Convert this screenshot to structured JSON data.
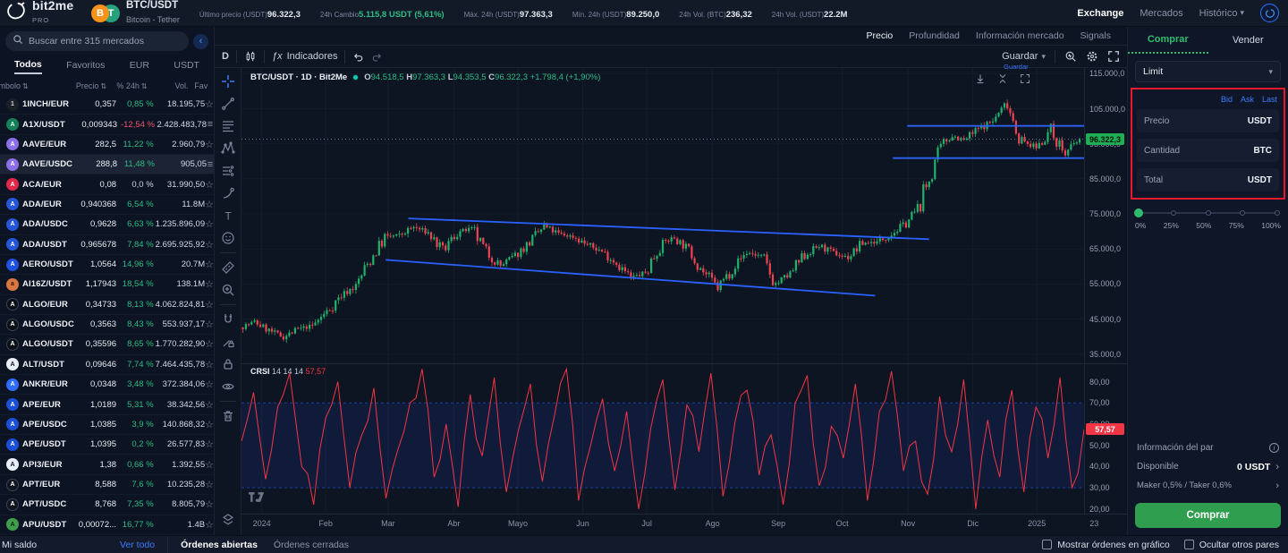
{
  "colors": {
    "accent_blue": "#3d7bfd",
    "green": "#2ebd85",
    "red": "#f23645",
    "candle_up": "#20b26b",
    "candle_down": "#f04352",
    "trendline": "#2962ff",
    "buy_button": "#2f9e4f",
    "annotation": "#e8182d"
  },
  "header": {
    "brand": {
      "name": "bit2me",
      "sub": "PRO"
    },
    "pair": {
      "symbol": "BTC/USDT",
      "name": "Bitcoin - Tether",
      "base_icon": "B",
      "quote_icon": "T"
    },
    "stats": [
      {
        "label": "Último precio (USDT)",
        "value": "96.322,3",
        "tone": "white"
      },
      {
        "label": "24h Cambio",
        "value": "5.115,8 USDT (5,61%)",
        "tone": "green"
      },
      {
        "label": "Máx. 24h (USDT)",
        "value": "97.363,3",
        "tone": "white"
      },
      {
        "label": "Mín. 24h (USDT)",
        "value": "89.250,0",
        "tone": "white"
      },
      {
        "label": "24h Vol. (BTC)",
        "value": "236,32",
        "tone": "white"
      },
      {
        "label": "24h Vol. (USDT)",
        "value": "22.2M",
        "tone": "white"
      }
    ],
    "nav": [
      {
        "label": "Exchange",
        "active": true,
        "chevron": false
      },
      {
        "label": "Mercados",
        "active": false,
        "chevron": false
      },
      {
        "label": "Histórico",
        "active": false,
        "chevron": true
      }
    ]
  },
  "sidebar": {
    "search_placeholder": "Buscar entre 315 mercados",
    "tabs": [
      "Todos",
      "Favoritos",
      "EUR",
      "USDT"
    ],
    "active_tab": "Todos",
    "columns": {
      "symbol": "Símbolo",
      "price": "Precio",
      "change": "% 24h",
      "vol": "Vol.",
      "fav": "Fav"
    },
    "rows": [
      {
        "pair": "1INCH/EUR",
        "price": "0,357",
        "change": "0,85 %",
        "dir": "up",
        "vol": "18.195,75",
        "fav": "star",
        "icon": {
          "bg": "#1b2026",
          "fg": "#cfd8e8",
          "ch": "1"
        },
        "hl": false
      },
      {
        "pair": "A1X/USDT",
        "price": "0,009343",
        "change": "-12,54 %",
        "dir": "down",
        "vol": "2.428.483,78",
        "fav": "list",
        "icon": {
          "bg": "#17805a",
          "fg": "#d6ffe9",
          "ch": "A"
        },
        "hl": false
      },
      {
        "pair": "AAVE/EUR",
        "price": "282,5",
        "change": "11,22 %",
        "dir": "up",
        "vol": "2.960,79",
        "fav": "star",
        "icon": {
          "bg": "#8c6fe8",
          "fg": "#fff",
          "ch": "A"
        },
        "hl": false
      },
      {
        "pair": "AAVE/USDC",
        "price": "288,8",
        "change": "11,48 %",
        "dir": "up",
        "vol": "905,05",
        "fav": "list",
        "icon": {
          "bg": "#8c6fe8",
          "fg": "#fff",
          "ch": "A"
        },
        "hl": true
      },
      {
        "pair": "ACA/EUR",
        "price": "0,08",
        "change": "0,0 %",
        "dir": "flat",
        "vol": "31.990,50",
        "fav": "star",
        "icon": {
          "bg": "#e0294a",
          "fg": "#fff",
          "ch": "A"
        },
        "hl": false
      },
      {
        "pair": "ADA/EUR",
        "price": "0,940368",
        "change": "6,54 %",
        "dir": "up",
        "vol": "11.8M",
        "fav": "star",
        "icon": {
          "bg": "#2656d8",
          "fg": "#fff",
          "ch": "A"
        },
        "hl": false
      },
      {
        "pair": "ADA/USDC",
        "price": "0,9628",
        "change": "6,63 %",
        "dir": "up",
        "vol": "1.235.896,09",
        "fav": "star",
        "icon": {
          "bg": "#2656d8",
          "fg": "#fff",
          "ch": "A"
        },
        "hl": false
      },
      {
        "pair": "ADA/USDT",
        "price": "0,965678",
        "change": "7,84 %",
        "dir": "up",
        "vol": "2.695.925,92",
        "fav": "star",
        "icon": {
          "bg": "#2656d8",
          "fg": "#fff",
          "ch": "A"
        },
        "hl": false
      },
      {
        "pair": "AERO/USDT",
        "price": "1,0564",
        "change": "14,96 %",
        "dir": "up",
        "vol": "20.7M",
        "fav": "star",
        "icon": {
          "bg": "#2050e0",
          "fg": "#fff",
          "ch": "A"
        },
        "hl": false
      },
      {
        "pair": "AI16Z/USDT",
        "price": "1,17943",
        "change": "18,54 %",
        "dir": "up",
        "vol": "138.1M",
        "fav": "star",
        "icon": {
          "bg": "#d97742",
          "fg": "#30180c",
          "ch": "a"
        },
        "hl": false
      },
      {
        "pair": "ALGO/EUR",
        "price": "0,34733",
        "change": "8,13 %",
        "dir": "up",
        "vol": "4.062.824,81",
        "fav": "star",
        "icon": {
          "bg": "#0c0f14",
          "fg": "#fff",
          "ch": "A"
        },
        "hl": false
      },
      {
        "pair": "ALGO/USDC",
        "price": "0,3563",
        "change": "8,43 %",
        "dir": "up",
        "vol": "553.937,17",
        "fav": "star",
        "icon": {
          "bg": "#0c0f14",
          "fg": "#fff",
          "ch": "A"
        },
        "hl": false
      },
      {
        "pair": "ALGO/USDT",
        "price": "0,35596",
        "change": "8,65 %",
        "dir": "up",
        "vol": "1.770.282,90",
        "fav": "star",
        "icon": {
          "bg": "#0c0f14",
          "fg": "#fff",
          "ch": "A"
        },
        "hl": false
      },
      {
        "pair": "ALT/USDT",
        "price": "0,09646",
        "change": "7,74 %",
        "dir": "up",
        "vol": "7.464.435,78",
        "fav": "star",
        "icon": {
          "bg": "#e8edf8",
          "fg": "#101623",
          "ch": "A"
        },
        "hl": false
      },
      {
        "pair": "ANKR/EUR",
        "price": "0,0348",
        "change": "3,48 %",
        "dir": "up",
        "vol": "372.384,06",
        "fav": "star",
        "icon": {
          "bg": "#2e6bff",
          "fg": "#fff",
          "ch": "A"
        },
        "hl": false
      },
      {
        "pair": "APE/EUR",
        "price": "1,0189",
        "change": "5,31 %",
        "dir": "up",
        "vol": "38.342,56",
        "fav": "star",
        "icon": {
          "bg": "#1a4fd6",
          "fg": "#fff",
          "ch": "A"
        },
        "hl": false
      },
      {
        "pair": "APE/USDC",
        "price": "1,0385",
        "change": "3,9 %",
        "dir": "up",
        "vol": "140.868,32",
        "fav": "star",
        "icon": {
          "bg": "#1a4fd6",
          "fg": "#fff",
          "ch": "A"
        },
        "hl": false
      },
      {
        "pair": "APE/USDT",
        "price": "1,0395",
        "change": "0,2 %",
        "dir": "up",
        "vol": "26.577,83",
        "fav": "star",
        "icon": {
          "bg": "#1a4fd6",
          "fg": "#fff",
          "ch": "A"
        },
        "hl": false
      },
      {
        "pair": "API3/EUR",
        "price": "1,38",
        "change": "0,66 %",
        "dir": "up",
        "vol": "1.392,55",
        "fav": "star",
        "icon": {
          "bg": "#e9eef8",
          "fg": "#101623",
          "ch": "A"
        },
        "hl": false
      },
      {
        "pair": "APT/EUR",
        "price": "8,588",
        "change": "7,6 %",
        "dir": "up",
        "vol": "10.235,28",
        "fav": "star",
        "icon": {
          "bg": "#10151d",
          "fg": "#fff",
          "ch": "A"
        },
        "hl": false
      },
      {
        "pair": "APT/USDC",
        "price": "8,768",
        "change": "7,35 %",
        "dir": "up",
        "vol": "8.805,79",
        "fav": "star",
        "icon": {
          "bg": "#10151d",
          "fg": "#fff",
          "ch": "A"
        },
        "hl": false
      },
      {
        "pair": "APU/USDT",
        "price": "0,00072...",
        "change": "16,77 %",
        "dir": "up",
        "vol": "1.4B",
        "fav": "star",
        "icon": {
          "bg": "#3f9e4c",
          "fg": "#0c2410",
          "ch": "A"
        },
        "hl": false
      }
    ]
  },
  "chart": {
    "tabs": [
      "Precio",
      "Profundidad",
      "Información mercado",
      "Signals"
    ],
    "active_tab": "Precio",
    "toolbar": {
      "timeframe": "D",
      "indicators_label": "Indicadores",
      "fx": "ƒx",
      "save_label": "Guardar",
      "save_tip": "Guardar"
    },
    "drawing_tools": [
      "crosshair",
      "trend-line",
      "fib-retracement",
      "xabcd-pattern",
      "forecast",
      "brush",
      "text",
      "emoji",
      "measure",
      "zoom-in",
      "magnet",
      "drawing-lock",
      "lock-all",
      "hide-all",
      "remove"
    ]
  },
  "chart_data": {
    "type": "candlestick",
    "title": "BTC/USDT · 1D · Bit2Me",
    "ohlc": {
      "open": "94.518,5",
      "high": "97.363,3",
      "low": "94.353,5",
      "close": "96.322,3",
      "change": "+1.798,4 (+1,90%)"
    },
    "last_price_k": 96.3223,
    "last_price_label": "96.322,3",
    "price_axis": {
      "ylim_k": [
        32.4,
        116.6
      ],
      "ticks": [
        {
          "v": 115,
          "label": "115.000,0"
        },
        {
          "v": 105,
          "label": "105.000,0"
        },
        {
          "v": 95,
          "label": "95.000,0"
        },
        {
          "v": 85,
          "label": "85.000,0"
        },
        {
          "v": 75,
          "label": "75.000,0"
        },
        {
          "v": 65,
          "label": "65.000,0"
        },
        {
          "v": 55,
          "label": "55.000,0"
        },
        {
          "v": 45,
          "label": "45.000,0"
        },
        {
          "v": 35,
          "label": "35.000,0"
        }
      ]
    },
    "weekly_closes_k": [
      42.6,
      44.2,
      41.7,
      39.9,
      42.1,
      43.1,
      47.1,
      51.8,
      54.5,
      62.0,
      68.3,
      69.0,
      71.2,
      69.6,
      64.3,
      69.8,
      70.7,
      63.9,
      60.2,
      63.1,
      66.9,
      71.4,
      69.3,
      68.5,
      66.2,
      64.3,
      61.0,
      56.7,
      58.2,
      66.5,
      68.2,
      64.8,
      58.6,
      53.9,
      59.5,
      64.1,
      62.9,
      54.9,
      57.9,
      63.3,
      65.9,
      63.8,
      62.5,
      66.7,
      67.0,
      69.3,
      72.3,
      77.5,
      90.0,
      97.7,
      95.9,
      99.2,
      101.5,
      106.8,
      95.5,
      94.0,
      99.0,
      92.0,
      96.3
    ],
    "x_axis": {
      "labels": [
        {
          "t": "2024",
          "f": 0.024
        },
        {
          "t": "Feb",
          "f": 0.1
        },
        {
          "t": "Mar",
          "f": 0.174
        },
        {
          "t": "Abr",
          "f": 0.252
        },
        {
          "t": "Mayo",
          "f": 0.328
        },
        {
          "t": "Jun",
          "f": 0.405
        },
        {
          "t": "Jul",
          "f": 0.481
        },
        {
          "t": "Ago",
          "f": 0.559
        },
        {
          "t": "Sep",
          "f": 0.637
        },
        {
          "t": "Oct",
          "f": 0.713
        },
        {
          "t": "Nov",
          "f": 0.791
        },
        {
          "t": "Dic",
          "f": 0.868
        },
        {
          "t": "2025",
          "f": 0.944
        },
        {
          "t": "23",
          "f": 1.012
        }
      ]
    },
    "trendlines": [
      {
        "name": "channel-top",
        "f1": 0.198,
        "p1": 73.7,
        "f2": 0.816,
        "p2": 67.8
      },
      {
        "name": "channel-bottom",
        "f1": 0.171,
        "p1": 61.9,
        "f2": 0.752,
        "p2": 51.7
      },
      {
        "name": "resistance",
        "f1": 0.79,
        "p1": 100.1,
        "f2": 1.0,
        "p2": 100.1
      },
      {
        "name": "support",
        "f1": 0.773,
        "p1": 90.9,
        "f2": 1.0,
        "p2": 90.9
      }
    ],
    "oscillator": {
      "name": "CRSI",
      "params": "14 14 14",
      "last": 57.57,
      "last_label": "57,57",
      "ylim": [
        17.8,
        88.7
      ],
      "ticks": [
        {
          "v": 80,
          "label": "80,00"
        },
        {
          "v": 70,
          "label": "70,00"
        },
        {
          "v": 60,
          "label": "60,00"
        },
        {
          "v": 50,
          "label": "50,00"
        },
        {
          "v": 40,
          "label": "40,00"
        },
        {
          "v": 30,
          "label": "30,00"
        },
        {
          "v": 20,
          "label": "20,00"
        }
      ],
      "upper_band": 70,
      "lower_band": 30,
      "samples": [
        52,
        75,
        34,
        68,
        84,
        40,
        22,
        63,
        80,
        30,
        55,
        77,
        25,
        48,
        70,
        86,
        35,
        60,
        21,
        74,
        45,
        82,
        28,
        57,
        79,
        33,
        64,
        86,
        24,
        50,
        72,
        38,
        66,
        20,
        58,
        81,
        29,
        69,
        47,
        84,
        26,
        61,
        76,
        36,
        55,
        22,
        70,
        83,
        31,
        59,
        44,
        79,
        24,
        66,
        85,
        38,
        52,
        27,
        73,
        47,
        81,
        20,
        62,
        35,
        76,
        28,
        68,
        44,
        82,
        30,
        57.57
      ]
    }
  },
  "trade_panel": {
    "buy_tab": "Comprar",
    "sell_tab": "Vender",
    "order_type": "Limit",
    "price_links": [
      "Bid",
      "Ask",
      "Last"
    ],
    "fields": [
      {
        "label": "Precio",
        "unit": "USDT"
      },
      {
        "label": "Cantidad",
        "unit": "BTC"
      },
      {
        "label": "Total",
        "unit": "USDT"
      }
    ],
    "slider_labels": [
      "0%",
      "25%",
      "50%",
      "75%",
      "100%"
    ],
    "info_title": "Información del par",
    "available_label": "Disponible",
    "available_value": "0 USDT",
    "fees": "Maker 0,5% / Taker 0,6%",
    "submit": "Comprar"
  },
  "bottom_bar": {
    "balance": "Mi saldo",
    "view_all": "Ver todo",
    "open_orders": "Órdenes abiertas",
    "closed_orders": "Órdenes cerradas",
    "show_orders_label": "Mostrar órdenes en gráfico",
    "hide_pairs_label": "Ocultar otros pares"
  }
}
